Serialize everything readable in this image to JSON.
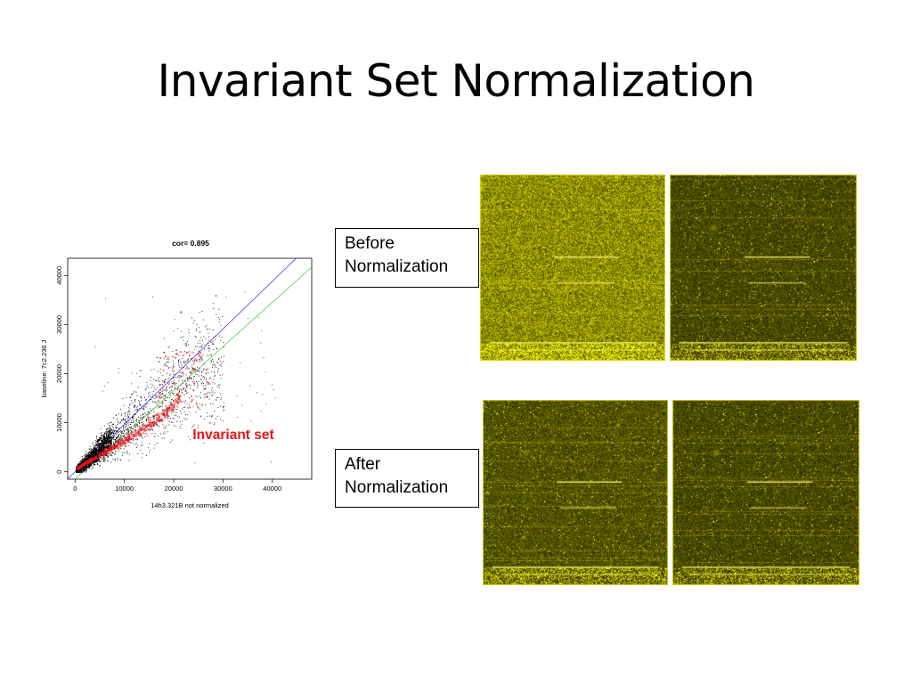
{
  "slide": {
    "title": "Invariant Set Normalization"
  },
  "captions": {
    "before": [
      "Before",
      "Normalization"
    ],
    "after": [
      "After",
      "Normalization"
    ]
  },
  "chart_data": {
    "type": "scatter",
    "title": "cor= 0.895",
    "xlabel": "14h3.321B not normalized",
    "ylabel": "baseline: 7c2.236 J",
    "xlim": [
      -1500,
      48000
    ],
    "ylim": [
      -1500,
      43500
    ],
    "xticks": [
      0,
      10000,
      20000,
      30000,
      40000
    ],
    "yticks": [
      0,
      10000,
      20000,
      30000,
      40000
    ],
    "annotation": "Invariant set",
    "annotation_color": "#e8141c",
    "series": [
      {
        "color": "#000000",
        "x": [
          1000,
          2000,
          3000,
          4000,
          5000,
          6000,
          8000,
          10000,
          12000,
          14000,
          16000,
          18000,
          20000,
          22000,
          25000,
          30000,
          35000
        ],
        "y": [
          900,
          1900,
          2700,
          3800,
          4600,
          5500,
          7000,
          8500,
          10500,
          12000,
          13500,
          15500,
          17000,
          19000,
          22000,
          20000,
          24000
        ]
      },
      {
        "name": "Invariant set",
        "color": "#e8141c",
        "x": [
          500,
          1000,
          2000,
          3000,
          4000,
          5000,
          6000,
          7000,
          8000,
          9000,
          10000,
          11000,
          12000,
          13000,
          14000,
          15000,
          16000,
          17000,
          18000,
          19000,
          20000,
          21000,
          22000,
          23000,
          24000,
          21500,
          19000,
          22500,
          25000,
          27000
        ],
        "y": [
          600,
          900,
          1600,
          2200,
          2800,
          3400,
          3900,
          4500,
          5100,
          5700,
          6300,
          6900,
          7500,
          8100,
          8700,
          9400,
          10100,
          10800,
          11600,
          12500,
          13500,
          15000,
          17000,
          19000,
          21000,
          32500,
          18000,
          26000,
          24000,
          18000
        ]
      }
    ],
    "fit_lines": [
      {
        "color": "#2b2bff",
        "slope": 0.97,
        "intercept": 0
      },
      {
        "color": "#39c63a",
        "slope": 0.9,
        "intercept": -1500
      }
    ]
  },
  "images": [
    {
      "name": "before-left",
      "brightness": 0.62
    },
    {
      "name": "before-right",
      "brightness": 0.32
    },
    {
      "name": "after-left",
      "brightness": 0.36
    },
    {
      "name": "after-right",
      "brightness": 0.32
    }
  ]
}
